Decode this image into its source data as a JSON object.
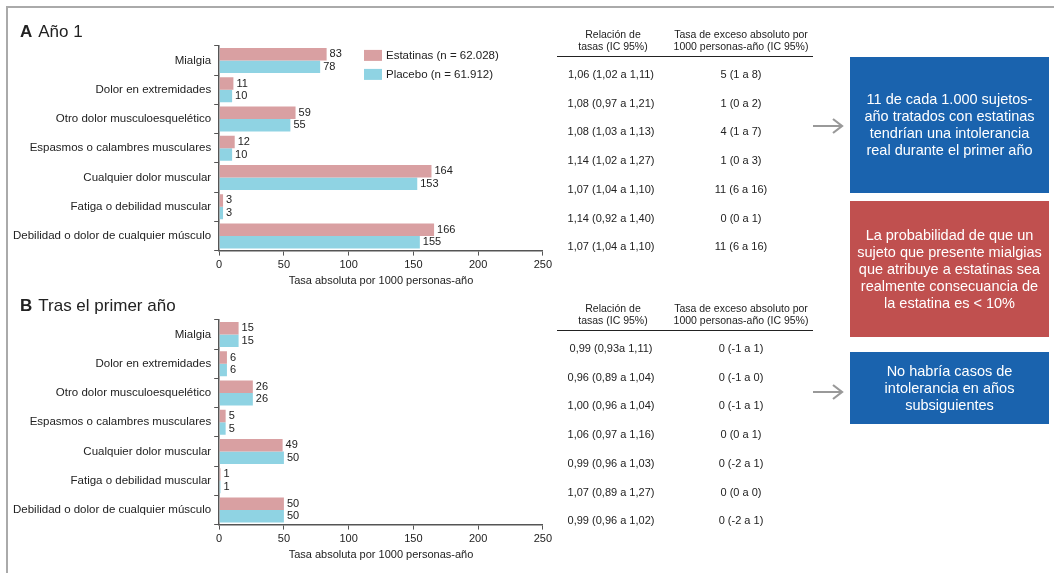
{
  "chart_data": [
    {
      "type": "bar",
      "orientation": "horizontal",
      "title": "A Año 1",
      "xlabel": "Tasa absoluta por 1000 personas-año",
      "categories": [
        "Mialgia",
        "Dolor en extremidades",
        "Otro dolor musculoesquelético",
        "Espasmos o calambres musculares",
        "Cualquier dolor muscular",
        "Fatiga o debilidad muscular",
        "Debilidad o dolor de cualquier músculo"
      ],
      "series": [
        {
          "name": "Estatinas (n = 62.028)",
          "color": "#d9a0a2",
          "values": [
            83,
            11,
            59,
            12,
            164,
            3,
            166
          ]
        },
        {
          "name": "Placebo (n = 61.912)",
          "color": "#8fd3e3",
          "values": [
            78,
            10,
            55,
            10,
            153,
            3,
            155
          ]
        }
      ],
      "xlim": [
        0,
        250
      ],
      "xticks": [
        0,
        50,
        100,
        150,
        200,
        250
      ],
      "legend": "top right",
      "data_labels": true,
      "annotations": [
        "Relación de tasas (IC 95%)",
        "Tasa de exceso absoluto por 1000 personas-año (IC 95%)",
        "1,06 (1,02 a 1,11)",
        "5 (1 a 8)",
        "1,08 (0,97 a 1,21)",
        "1 (0 a 2)",
        "1,08 (1,03 a 1,13)",
        "4 (1 a 7)",
        "1,14 (1,02 a 1,27)",
        "1 (0 a 3)",
        "1,07 (1,04 a 1,10)",
        "11 (6 a 16)",
        "1,14 (0,92 a 1,40)",
        "0 (0 a 1)",
        "1,07 (1,04 a 1,10)",
        "11 (6 a 16)"
      ]
    },
    {
      "type": "bar",
      "orientation": "horizontal",
      "title": "B Tras el primer año",
      "xlabel": "Tasa absoluta por 1000 personas-año",
      "categories": [
        "Mialgia",
        "Dolor en extremidades",
        "Otro dolor musculoesquelético",
        "Espasmos o calambres musculares",
        "Cualquier dolor muscular",
        "Fatiga o debilidad muscular",
        "Debilidad o dolor de cualquier músculo"
      ],
      "series": [
        {
          "color": "#d9a0a2",
          "values": [
            15,
            6,
            26,
            5,
            49,
            1,
            50
          ]
        },
        {
          "color": "#8fd3e3",
          "values": [
            15,
            6,
            26,
            5,
            50,
            1,
            50
          ]
        }
      ],
      "xlim": [
        0,
        250
      ],
      "xticks": [
        0,
        50,
        100,
        150,
        200,
        250
      ],
      "data_labels": true,
      "annotations": [
        "Relación de tasas (IC 95%)",
        "Tasa de exceso absoluto por 1000 personas-año (IC 95%)",
        "0,99 (0,93a 1,11)",
        "0 (-1 a 1)",
        "0,96 (0,89 a 1,04)",
        "0 (-1 a 0)",
        "1,00 (0,96 a 1,04)",
        "0 (-1 a 1)",
        "1,06 (0,97 a 1,16)",
        "0 (0 a 1)",
        "0,99 (0,96 a 1,03)",
        "0 (-2 a 1)",
        "1,07 (0,89 a 1,27)",
        "0 (0 a 0)",
        "0,99 (0,96 a 1,02)",
        "0 (-2 a 1)"
      ]
    },
    {
      "type": "other",
      "annotations": [
        "11 de cada 1.000 sujetos-año tratados con estatinas tendrían una intolerancia real durante el primer año",
        "La probabilidad de que un sujeto que presente mialgias que atribuye a estatinas sea realmente consecuancia de la estatina es < 10%",
        "No habría casos de intolerancia en años subsiguientes"
      ],
      "colors": [
        "#1a63ae",
        "#c0504f",
        "#1a63ae"
      ]
    }
  ]
}
